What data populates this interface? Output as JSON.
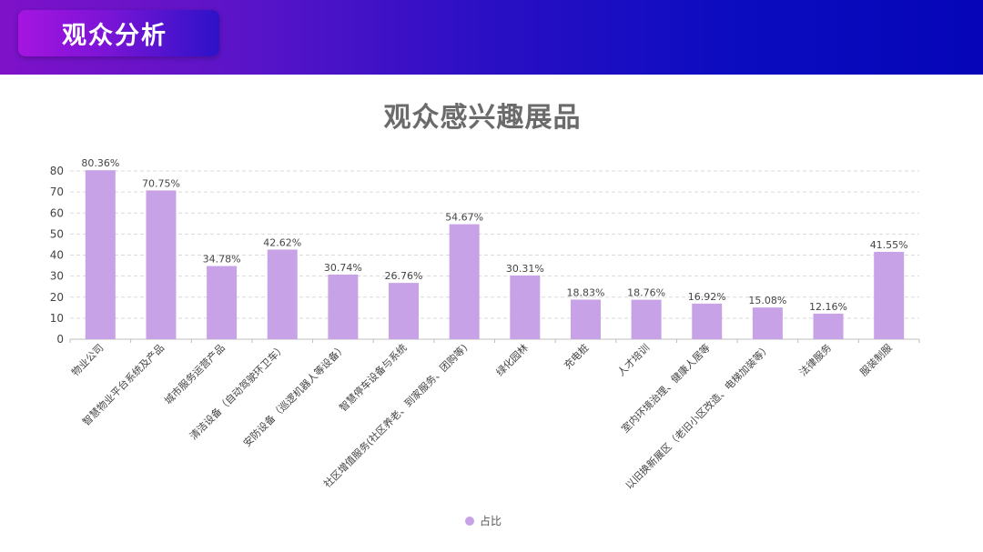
{
  "header": {
    "section_title": "观众分析"
  },
  "chart_data": {
    "type": "bar",
    "title": "观众感兴趣展品",
    "xlabel": "",
    "ylabel": "",
    "ylim": [
      0,
      80
    ],
    "yticks": [
      0,
      10,
      20,
      30,
      40,
      50,
      60,
      70,
      80
    ],
    "grid": true,
    "legend_position": "bottom",
    "bar_color": "#c8a2e6",
    "categories": [
      "物业公司",
      "智慧物业平台系统及产品",
      "城市服务运营产品",
      "清洁设备（自动驾驶环卫车）",
      "安防设备（巡逻机器人等设备）",
      "智慧停车设备与系统",
      "社区增值服务(社区养老、到家服务、团购等)",
      "绿化园林",
      "充电桩",
      "人才培训",
      "室内环境治理、健康人居等",
      "以旧换新展区（老旧小区改造、电梯加装等）",
      "法律服务",
      "服装制服"
    ],
    "series": [
      {
        "name": "占比",
        "values": [
          80.36,
          70.75,
          34.78,
          42.62,
          30.74,
          26.76,
          54.67,
          30.31,
          18.83,
          18.76,
          16.92,
          15.08,
          12.16,
          41.55
        ],
        "labels": [
          "80.36%",
          "70.75%",
          "34.78%",
          "42.62%",
          "30.74%",
          "26.76%",
          "54.67%",
          "30.31%",
          "18.83%",
          "18.76%",
          "16.92%",
          "15.08%",
          "12.16%",
          "41.55%"
        ]
      }
    ]
  }
}
